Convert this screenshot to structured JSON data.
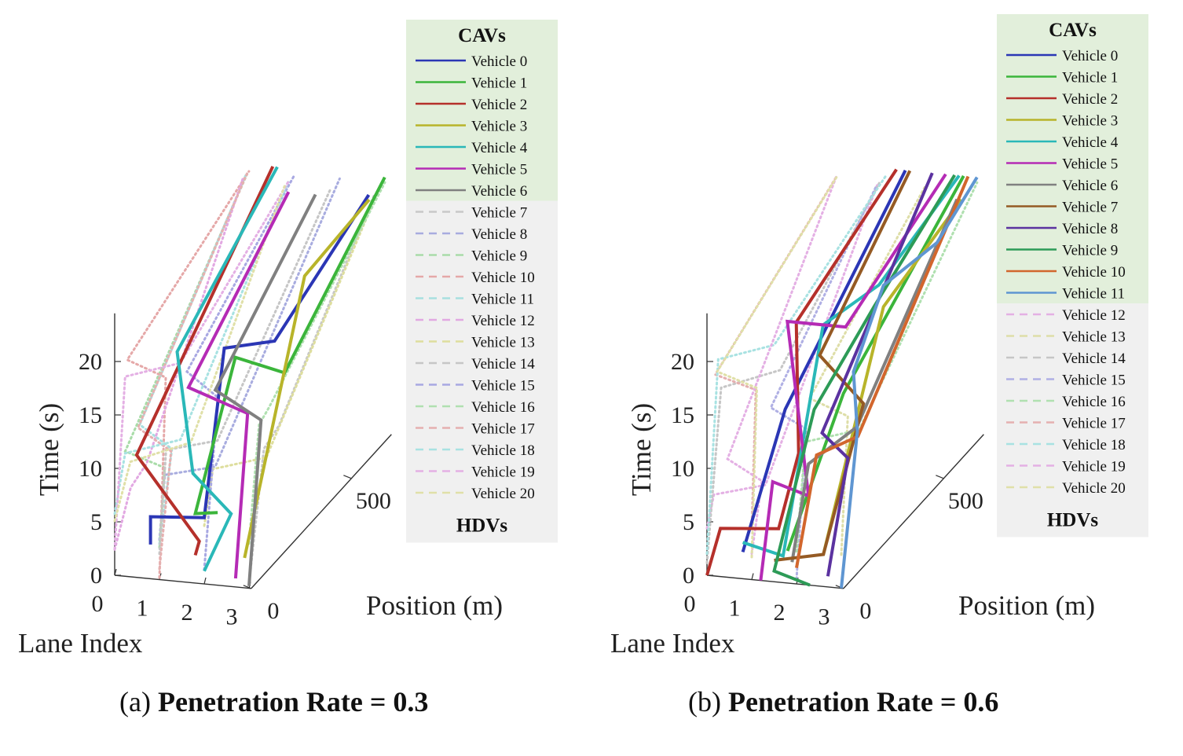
{
  "chart_data": [
    {
      "type": "line",
      "projection": "3d",
      "caption_prefix": "(a)",
      "caption_bold": "Penetration Rate = 0.3",
      "xlabel": "Lane Index",
      "ylabel": "Position (m)",
      "zlabel": "Time (s)",
      "xticks": [
        "0",
        "1",
        "2",
        "3"
      ],
      "yticks": [
        "0",
        "500"
      ],
      "zticks": [
        "0",
        "5",
        "10",
        "15",
        "20"
      ],
      "legend": {
        "cav_title": "CAVs",
        "hdv_title": "HDVs",
        "cav_bg": "#e2efdb",
        "hdv_bg": "#f0f0f0",
        "entries": [
          {
            "label": "Vehicle 0",
            "color": "#2b36b5",
            "cav": true
          },
          {
            "label": "Vehicle 1",
            "color": "#3bb53b",
            "cav": true
          },
          {
            "label": "Vehicle 2",
            "color": "#b5302b",
            "cav": true
          },
          {
            "label": "Vehicle 3",
            "color": "#b8b42a",
            "cav": true
          },
          {
            "label": "Vehicle 4",
            "color": "#2ab8b8",
            "cav": true
          },
          {
            "label": "Vehicle 5",
            "color": "#b52bb5",
            "cav": true
          },
          {
            "label": "Vehicle 6",
            "color": "#808080",
            "cav": true
          },
          {
            "label": "Vehicle 7",
            "color": "#c8c8c8",
            "cav": false
          },
          {
            "label": "Vehicle 8",
            "color": "#a8acdf",
            "cav": false
          },
          {
            "label": "Vehicle 9",
            "color": "#a9dca9",
            "cav": false
          },
          {
            "label": "Vehicle 10",
            "color": "#e5a8a8",
            "cav": false
          },
          {
            "label": "Vehicle 11",
            "color": "#a8dfdf",
            "cav": false
          },
          {
            "label": "Vehicle 12",
            "color": "#e2a8e2",
            "cav": false
          },
          {
            "label": "Vehicle 13",
            "color": "#dede9e",
            "cav": false
          },
          {
            "label": "Vehicle 14",
            "color": "#c6c6c6",
            "cav": false
          },
          {
            "label": "Vehicle 15",
            "color": "#a8a8e2",
            "cav": false
          },
          {
            "label": "Vehicle 16",
            "color": "#b0e0b0",
            "cav": false
          },
          {
            "label": "Vehicle 17",
            "color": "#e5b0b0",
            "cav": false
          },
          {
            "label": "Vehicle 18",
            "color": "#a8e2e2",
            "cav": false
          },
          {
            "label": "Vehicle 19",
            "color": "#e4b0e4",
            "cav": false
          },
          {
            "label": "Vehicle 20",
            "color": "#e0e0a8",
            "cav": false
          }
        ]
      },
      "series": [
        {
          "name": "Vehicle 0",
          "points": [
            [
              0.8,
              0,
              3.2
            ],
            [
              0.8,
              0,
              5.8
            ],
            [
              2.0,
              0,
              6.2
            ],
            [
              2.0,
              100,
              20
            ],
            [
              2.9,
              150,
              20
            ],
            [
              2.9,
              620,
              24
            ]
          ]
        },
        {
          "name": "Vehicle 1",
          "points": [
            [
              2.3,
              0,
              6.8
            ],
            [
              1.8,
              0,
              6.5
            ],
            [
              1.8,
              200,
              17
            ],
            [
              2.9,
              200,
              16
            ],
            [
              2.9,
              700,
              24
            ]
          ]
        },
        {
          "name": "Vehicle 2",
          "points": [
            [
              1.8,
              0,
              2.6
            ],
            [
              1.8,
              20,
              3.5
            ],
            [
              0.4,
              20,
              11
            ],
            [
              0.4,
              700,
              24
            ]
          ]
        },
        {
          "name": "Vehicle 3",
          "points": [
            [
              2.9,
              0,
              2.8
            ],
            [
              2.9,
              300,
              23
            ],
            [
              3.0,
              600,
              24
            ]
          ]
        },
        {
          "name": "Vehicle 4",
          "points": [
            [
              2.0,
              0,
              1.2
            ],
            [
              2.6,
              0,
              6.8
            ],
            [
              1.3,
              100,
              8
            ],
            [
              0.5,
              200,
              17
            ],
            [
              0.5,
              700,
              24
            ]
          ]
        },
        {
          "name": "Vehicle 5",
          "points": [
            [
              2.7,
              0,
              0.8
            ],
            [
              2.7,
              60,
              15
            ],
            [
              1.2,
              100,
              16
            ],
            [
              1.2,
              600,
              24
            ]
          ]
        },
        {
          "name": "Vehicle 6",
          "points": [
            [
              3.0,
              0,
              0.2
            ],
            [
              3.0,
              60,
              14.5
            ],
            [
              1.8,
              100,
              16
            ],
            [
              1.8,
              600,
              24
            ]
          ]
        }
      ]
    },
    {
      "type": "line",
      "projection": "3d",
      "caption_prefix": "(b)",
      "caption_bold": "Penetration Rate = 0.6",
      "xlabel": "Lane Index",
      "ylabel": "Position (m)",
      "zlabel": "Time (s)",
      "xticks": [
        "0",
        "1",
        "2",
        "3"
      ],
      "yticks": [
        "0",
        "500"
      ],
      "zticks": [
        "0",
        "5",
        "10",
        "15",
        "20"
      ],
      "legend": {
        "cav_title": "CAVs",
        "hdv_title": "HDVs",
        "cav_bg": "#e2efdb",
        "hdv_bg": "#f0f0f0",
        "entries": [
          {
            "label": "Vehicle 0",
            "color": "#2b36b5",
            "cav": true
          },
          {
            "label": "Vehicle 1",
            "color": "#3bb53b",
            "cav": true
          },
          {
            "label": "Vehicle 2",
            "color": "#b5302b",
            "cav": true
          },
          {
            "label": "Vehicle 3",
            "color": "#b8b42a",
            "cav": true
          },
          {
            "label": "Vehicle 4",
            "color": "#2ab8b8",
            "cav": true
          },
          {
            "label": "Vehicle 5",
            "color": "#b52bb5",
            "cav": true
          },
          {
            "label": "Vehicle 6",
            "color": "#808080",
            "cav": true
          },
          {
            "label": "Vehicle 7",
            "color": "#955a24",
            "cav": true
          },
          {
            "label": "Vehicle 8",
            "color": "#5b32a0",
            "cav": true
          },
          {
            "label": "Vehicle 9",
            "color": "#2d9b57",
            "cav": true
          },
          {
            "label": "Vehicle 10",
            "color": "#d2662d",
            "cav": true
          },
          {
            "label": "Vehicle 11",
            "color": "#5f96d2",
            "cav": true
          },
          {
            "label": "Vehicle 12",
            "color": "#e4b0e4",
            "cav": false
          },
          {
            "label": "Vehicle 13",
            "color": "#dedea8",
            "cav": false
          },
          {
            "label": "Vehicle 14",
            "color": "#c6c6c6",
            "cav": false
          },
          {
            "label": "Vehicle 15",
            "color": "#b0b0e4",
            "cav": false
          },
          {
            "label": "Vehicle 16",
            "color": "#b0e0b0",
            "cav": false
          },
          {
            "label": "Vehicle 17",
            "color": "#e5b0b0",
            "cav": false
          },
          {
            "label": "Vehicle 18",
            "color": "#a8e2e2",
            "cav": false
          },
          {
            "label": "Vehicle 19",
            "color": "#e4b0e4",
            "cav": false
          },
          {
            "label": "Vehicle 20",
            "color": "#e0e0a8",
            "cav": false
          }
        ]
      },
      "series": [
        {
          "name": "Vehicle 0",
          "points": [
            [
              0.8,
              0,
              2.5
            ],
            [
              1.3,
              100,
              14
            ],
            [
              1.3,
              700,
              24
            ]
          ]
        },
        {
          "name": "Vehicle 1",
          "points": [
            [
              1.8,
              0,
              3
            ],
            [
              2.6,
              100,
              16
            ],
            [
              2.6,
              700,
              24
            ]
          ]
        },
        {
          "name": "Vehicle 2",
          "points": [
            [
              0.0,
              0,
              0
            ],
            [
              0.3,
              0,
              4.5
            ],
            [
              1.6,
              0,
              5
            ],
            [
              1.6,
              100,
              10
            ],
            [
              1.1,
              200,
              20
            ],
            [
              1.1,
              700,
              24
            ]
          ]
        },
        {
          "name": "Vehicle 3",
          "points": [
            [
              2.6,
              0,
              3
            ],
            [
              2.6,
              300,
              20
            ],
            [
              3.0,
              600,
              24
            ]
          ]
        },
        {
          "name": "Vehicle 4",
          "points": [
            [
              0.8,
              0,
              3.4
            ],
            [
              1.7,
              0,
              2.5
            ],
            [
              1.7,
              200,
              20
            ],
            [
              2.5,
              300,
              22
            ],
            [
              2.5,
              700,
              24
            ]
          ]
        },
        {
          "name": "Vehicle 5",
          "points": [
            [
              1.2,
              0,
              0
            ],
            [
              1.2,
              60,
              8
            ],
            [
              2.0,
              60,
              7
            ],
            [
              0.9,
              200,
              20
            ],
            [
              2.2,
              200,
              20
            ],
            [
              2.2,
              700,
              24
            ]
          ]
        },
        {
          "name": "Vehicle 6",
          "points": [
            [
              1.9,
              0,
              2
            ],
            [
              2.0,
              60,
              10
            ],
            [
              2.9,
              100,
              13
            ],
            [
              2.9,
              600,
              24
            ]
          ]
        },
        {
          "name": "Vehicle 7",
          "points": [
            [
              1.5,
              0,
              2
            ],
            [
              2.6,
              0,
              3
            ],
            [
              2.6,
              200,
              13
            ],
            [
              1.4,
              250,
              16
            ],
            [
              1.4,
              700,
              24
            ]
          ]
        },
        {
          "name": "Vehicle 8",
          "points": [
            [
              2.7,
              0,
              1
            ],
            [
              2.7,
              100,
              10
            ],
            [
              1.9,
              150,
              11
            ],
            [
              1.9,
              700,
              24
            ]
          ]
        },
        {
          "name": "Vehicle 9",
          "points": [
            [
              2.3,
              0,
              0
            ],
            [
              1.5,
              0,
              1
            ],
            [
              1.5,
              200,
              12
            ],
            [
              2.4,
              300,
              20
            ],
            [
              2.4,
              700,
              24
            ]
          ]
        },
        {
          "name": "Vehicle 10",
          "points": [
            [
              2.0,
              0,
              1.5
            ],
            [
              2.0,
              100,
              10
            ],
            [
              2.7,
              150,
              11
            ],
            [
              2.7,
              700,
              24
            ]
          ]
        },
        {
          "name": "Vehicle 11",
          "points": [
            [
              3.0,
              0,
              0
            ],
            [
              3.0,
              80,
              13
            ],
            [
              2.6,
              150,
              17
            ],
            [
              2.6,
              300,
              22
            ],
            [
              2.9,
              500,
              22
            ],
            [
              2.9,
              700,
              24
            ]
          ]
        }
      ]
    }
  ]
}
